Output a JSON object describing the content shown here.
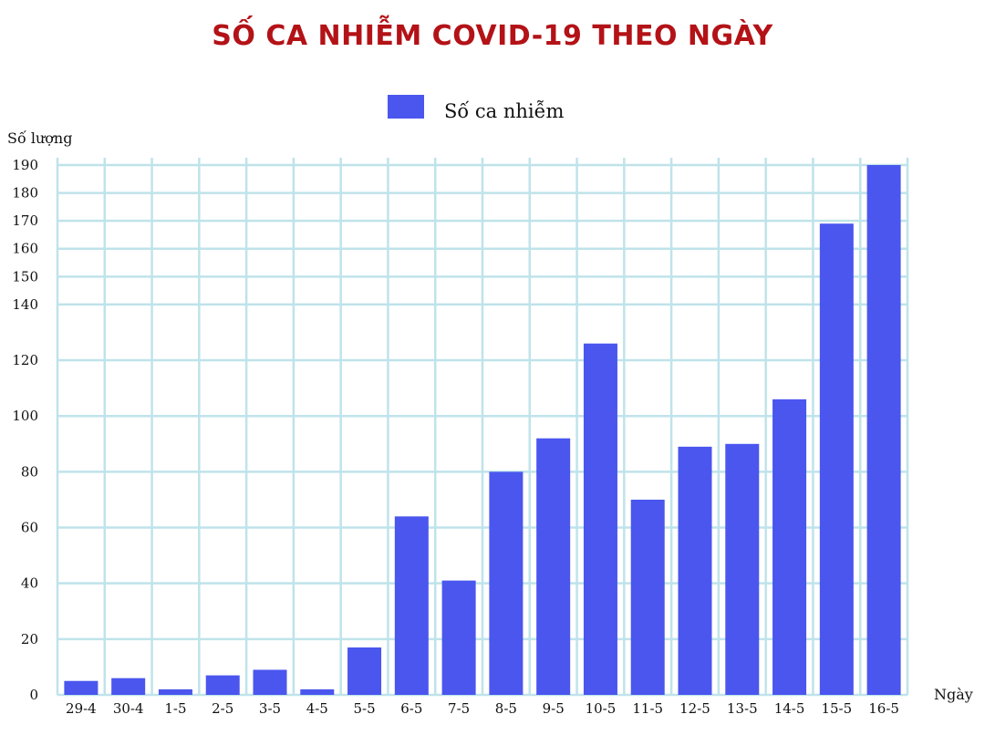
{
  "colors": {
    "title": "#b31217",
    "bar": "#4a56ee",
    "grid": "#bfe3ea"
  },
  "chart_data": {
    "type": "bar",
    "title": "SỐ CA NHIỄM COVID-19 THEO NGÀY",
    "xlabel": "Ngày",
    "ylabel": "Số lượng",
    "legend": {
      "position": "top-center",
      "entries": [
        "Số ca nhiễm"
      ]
    },
    "grid": true,
    "categories": [
      "29-4",
      "30-4",
      "1-5",
      "2-5",
      "3-5",
      "4-5",
      "5-5",
      "6-5",
      "7-5",
      "8-5",
      "9-5",
      "10-5",
      "11-5",
      "12-5",
      "13-5",
      "14-5",
      "15-5",
      "16-5"
    ],
    "series": [
      {
        "name": "Số ca nhiễm",
        "values": [
          5,
          6,
          2,
          7,
          9,
          2,
          17,
          64,
          41,
          80,
          92,
          126,
          70,
          89,
          90,
          106,
          169,
          190
        ]
      }
    ],
    "ylim": [
      0,
      190
    ],
    "yticks": [
      0,
      20,
      40,
      60,
      80,
      100,
      120,
      140,
      150,
      160,
      170,
      180,
      190
    ]
  }
}
